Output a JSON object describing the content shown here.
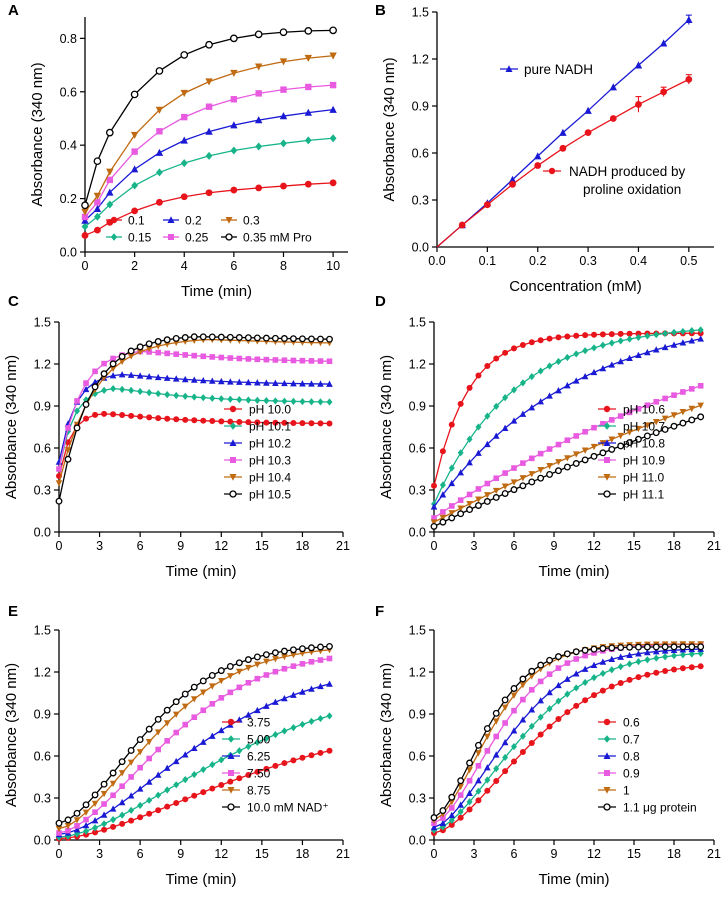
{
  "figure": {
    "y_axis_title": "Absorbance (340 nm)",
    "x_axis_title_time": "Time (min)",
    "x_axis_title_conc": "Concentration (mM)"
  },
  "chart_data": [
    {
      "panel": "A",
      "type": "line",
      "xlabel": "Time (min)",
      "ylabel": "Absorbance (340 nm)",
      "xlim": [
        0,
        10.6
      ],
      "ylim": [
        0,
        0.88
      ],
      "xticks": [
        0,
        2,
        4,
        6,
        8,
        10
      ],
      "yticks": [
        0.0,
        0.2,
        0.4,
        0.6,
        0.8
      ],
      "x": [
        0,
        0.5,
        1,
        2,
        3,
        4,
        5,
        6,
        7,
        8,
        9,
        10
      ],
      "legend_suffix": "mM Pro",
      "series": [
        {
          "name": "0.1",
          "color": "#e8141c",
          "marker": "circle",
          "values": [
            0.062,
            0.082,
            0.111,
            0.154,
            0.186,
            0.207,
            0.222,
            0.232,
            0.24,
            0.247,
            0.254,
            0.259
          ]
        },
        {
          "name": "0.15",
          "color": "#17b48a",
          "marker": "diamond",
          "values": [
            0.095,
            0.132,
            0.178,
            0.249,
            0.298,
            0.333,
            0.36,
            0.38,
            0.395,
            0.407,
            0.418,
            0.426
          ]
        },
        {
          "name": "0.2",
          "color": "#1a1ad4",
          "marker": "triangle",
          "values": [
            0.118,
            0.162,
            0.223,
            0.31,
            0.372,
            0.418,
            0.451,
            0.475,
            0.494,
            0.509,
            0.522,
            0.533
          ]
        },
        {
          "name": "0.25",
          "color": "#e85be0",
          "marker": "square",
          "values": [
            0.131,
            0.186,
            0.27,
            0.376,
            0.452,
            0.505,
            0.544,
            0.572,
            0.594,
            0.608,
            0.618,
            0.625
          ]
        },
        {
          "name": "0.3",
          "color": "#c06a12",
          "marker": "triangle-down",
          "values": [
            0.15,
            0.21,
            0.3,
            0.438,
            0.532,
            0.595,
            0.638,
            0.67,
            0.694,
            0.713,
            0.726,
            0.735
          ]
        },
        {
          "name": "0.35",
          "color": "#000000",
          "marker": "open-circle",
          "values": [
            0.175,
            0.34,
            0.447,
            0.59,
            0.678,
            0.738,
            0.776,
            0.8,
            0.815,
            0.823,
            0.828,
            0.83
          ]
        }
      ]
    },
    {
      "panel": "B",
      "type": "line",
      "xlabel": "Concentration (mM)",
      "ylabel": "Absorbance (340 nm)",
      "xlim": [
        0,
        0.55
      ],
      "ylim": [
        0,
        1.5
      ],
      "xticks": [
        0.0,
        0.1,
        0.2,
        0.3,
        0.4,
        0.5
      ],
      "yticks": [
        0.0,
        0.3,
        0.6,
        0.9,
        1.2,
        1.5
      ],
      "x": [
        0,
        0.05,
        0.1,
        0.15,
        0.2,
        0.25,
        0.3,
        0.35,
        0.4,
        0.45,
        0.5
      ],
      "series": [
        {
          "name": "pure NADH",
          "color": "#1a1ad4",
          "marker": "triangle",
          "values": [
            0.0,
            0.14,
            0.28,
            0.43,
            0.58,
            0.73,
            0.87,
            1.02,
            1.16,
            1.3,
            1.45
          ],
          "error": [
            0,
            0,
            0,
            0,
            0,
            0,
            0,
            0,
            0,
            0,
            0.03
          ]
        },
        {
          "name": "NADH produced by proline oxidation",
          "color": "#e8141c",
          "marker": "circle",
          "values": [
            0.0,
            0.14,
            0.27,
            0.4,
            0.52,
            0.63,
            0.73,
            0.82,
            0.91,
            0.99,
            1.07
          ],
          "error": [
            0,
            0,
            0,
            0,
            0,
            0,
            0,
            0,
            0.05,
            0.03,
            0.03
          ]
        }
      ],
      "annotations": {
        "pure_nadh": "pure NADH",
        "produced_line1": "NADH produced by",
        "produced_line2": "proline oxidation"
      }
    },
    {
      "panel": "C",
      "type": "line",
      "xlabel": "Time (min)",
      "ylabel": "Absorbance (340 nm)",
      "xlim": [
        0,
        21
      ],
      "ylim": [
        0,
        1.5
      ],
      "xticks": [
        0,
        3,
        6,
        9,
        12,
        15,
        18,
        21
      ],
      "yticks": [
        0.0,
        0.3,
        0.6,
        0.9,
        1.2,
        1.5
      ],
      "curve_model": "peak",
      "series": [
        {
          "name": "pH 10.0",
          "color": "#e8141c",
          "marker": "circle",
          "values_model": {
            "start": 0.4,
            "peak": 0.86,
            "t_peak": 3.0,
            "end": 0.77,
            "tau": 0.9
          }
        },
        {
          "name": "pH 10.1",
          "color": "#17b48a",
          "marker": "diamond",
          "values_model": {
            "start": 0.45,
            "peak": 1.04,
            "t_peak": 4.0,
            "end": 0.92,
            "tau": 1.1
          }
        },
        {
          "name": "pH 10.2",
          "color": "#1a1ad4",
          "marker": "triangle",
          "values_model": {
            "start": 0.5,
            "peak": 1.14,
            "t_peak": 4.5,
            "end": 1.05,
            "tau": 1.2
          }
        },
        {
          "name": "pH 10.3",
          "color": "#e85be0",
          "marker": "square",
          "values_model": {
            "start": 0.45,
            "peak": 1.31,
            "t_peak": 6.0,
            "end": 1.21,
            "tau": 1.6
          }
        },
        {
          "name": "pH 10.4",
          "color": "#c06a12",
          "marker": "triangle-down",
          "values_model": {
            "start": 0.35,
            "peak": 1.39,
            "t_peak": 11.0,
            "end": 1.34,
            "tau": 2.6
          }
        },
        {
          "name": "pH 10.5",
          "color": "#000000",
          "marker": "open-circle",
          "values_model": {
            "start": 0.22,
            "peak": 1.41,
            "t_peak": 10.0,
            "end": 1.37,
            "tau": 2.3
          }
        }
      ]
    },
    {
      "panel": "D",
      "type": "line",
      "xlabel": "Time (min)",
      "ylabel": "Absorbance (340 nm)",
      "xlim": [
        0,
        21
      ],
      "ylim": [
        0,
        1.5
      ],
      "xticks": [
        0,
        3,
        6,
        9,
        12,
        15,
        18,
        21
      ],
      "yticks": [
        0.0,
        0.3,
        0.6,
        0.9,
        1.2,
        1.5
      ],
      "curve_model": "saturating",
      "series": [
        {
          "name": "pH 10.6",
          "color": "#e8141c",
          "marker": "circle",
          "values_model": {
            "start": 0.33,
            "max": 1.42,
            "tau": 2.6
          }
        },
        {
          "name": "pH 10.7",
          "color": "#17b48a",
          "marker": "diamond",
          "values_model": {
            "start": 0.2,
            "max": 1.49,
            "tau": 6.0
          }
        },
        {
          "name": "pH 10.8",
          "color": "#1a1ad4",
          "marker": "triangle",
          "values_model": {
            "start": 0.18,
            "max": 1.59,
            "tau": 10.5
          }
        },
        {
          "name": "pH 10.9",
          "color": "#e85be0",
          "marker": "square",
          "values_model": {
            "start": 0.1,
            "max": 1.95,
            "tau": 28.0
          }
        },
        {
          "name": "pH 11.0",
          "color": "#c06a12",
          "marker": "triangle-down",
          "values_model": {
            "start": 0.07,
            "max": 2.6,
            "tau": 50.0
          }
        },
        {
          "name": "pH 11.1",
          "color": "#000000",
          "marker": "open-circle",
          "values_model": {
            "start": 0.04,
            "max": 2.8,
            "tau": 60.0
          }
        }
      ]
    },
    {
      "panel": "E",
      "type": "line",
      "xlabel": "Time (min)",
      "ylabel": "Absorbance (340 nm)",
      "xlim": [
        0,
        21
      ],
      "ylim": [
        0,
        1.5
      ],
      "xticks": [
        0,
        3,
        6,
        9,
        12,
        15,
        18,
        21
      ],
      "yticks": [
        0.0,
        0.3,
        0.6,
        0.9,
        1.2,
        1.5
      ],
      "curve_model": "sigmoid",
      "series": [
        {
          "name": "3.75",
          "color": "#e8141c",
          "marker": "circle",
          "values_model": {
            "start": 0.01,
            "end": 0.85,
            "ref": 1.8
          }
        },
        {
          "name": "5.00",
          "color": "#17b48a",
          "marker": "diamond",
          "values_model": {
            "start": 0.02,
            "end": 1.1,
            "ref": 1.5
          }
        },
        {
          "name": "6.25",
          "color": "#1a1ad4",
          "marker": "triangle",
          "values_model": {
            "start": 0.04,
            "end": 1.26,
            "ref": 1.1
          }
        },
        {
          "name": "7.50",
          "color": "#e85be0",
          "marker": "square",
          "values_model": {
            "start": 0.05,
            "end": 1.36,
            "ref": 0.72
          }
        },
        {
          "name": "8.75",
          "color": "#c06a12",
          "marker": "triangle-down",
          "values_model": {
            "start": 0.08,
            "end": 1.39,
            "ref": 0.55
          }
        },
        {
          "name": "10.0",
          "color": "#000000",
          "marker": "open-circle",
          "values_model": {
            "start": 0.12,
            "end": 1.4,
            "ref": 0.45
          }
        }
      ],
      "legend_suffix": "mM NAD⁺"
    },
    {
      "panel": "F",
      "type": "line",
      "xlabel": "Time (min)",
      "ylabel": "Absorbance (340 nm)",
      "xlim": [
        0,
        21
      ],
      "ylim": [
        0,
        1.5
      ],
      "xticks": [
        0,
        3,
        6,
        9,
        12,
        15,
        18,
        21
      ],
      "yticks": [
        0.0,
        0.3,
        0.6,
        0.9,
        1.2,
        1.5
      ],
      "curve_model": "sigmoid",
      "series": [
        {
          "name": "0.6",
          "color": "#e8141c",
          "marker": "circle",
          "values_model": {
            "start": 0.05,
            "end": 1.27,
            "ref": 0.55
          }
        },
        {
          "name": "0.7",
          "color": "#17b48a",
          "marker": "diamond",
          "values_model": {
            "start": 0.07,
            "end": 1.35,
            "ref": 0.45
          }
        },
        {
          "name": "0.8",
          "color": "#1a1ad4",
          "marker": "triangle",
          "values_model": {
            "start": 0.09,
            "end": 1.37,
            "ref": 0.33
          }
        },
        {
          "name": "0.9",
          "color": "#e85be0",
          "marker": "square",
          "values_model": {
            "start": 0.12,
            "end": 1.4,
            "ref": 0.22
          }
        },
        {
          "name": "1",
          "color": "#c06a12",
          "marker": "triangle-down",
          "values_model": {
            "start": 0.14,
            "end": 1.4,
            "ref": 0.14
          }
        },
        {
          "name": "1.1",
          "color": "#000000",
          "marker": "open-circle",
          "values_model": {
            "start": 0.16,
            "end": 1.38,
            "ref": 0.1
          }
        }
      ],
      "legend_suffix": "μg protein"
    }
  ]
}
